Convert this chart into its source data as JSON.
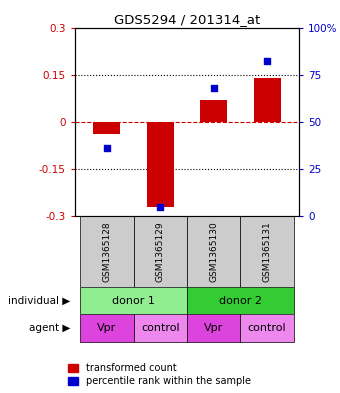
{
  "title": "GDS5294 / 201314_at",
  "samples": [
    "GSM1365128",
    "GSM1365129",
    "GSM1365130",
    "GSM1365131"
  ],
  "red_values": [
    -0.04,
    -0.27,
    0.07,
    0.14
  ],
  "blue_percentiles": [
    36,
    5,
    68,
    82
  ],
  "ylim_left": [
    -0.3,
    0.3
  ],
  "ylim_right": [
    0,
    100
  ],
  "yticks_left": [
    -0.3,
    -0.15,
    0,
    0.15,
    0.3
  ],
  "yticks_right": [
    0,
    25,
    50,
    75,
    100
  ],
  "ytick_labels_left": [
    "-0.3",
    "-0.15",
    "0",
    "0.15",
    "0.3"
  ],
  "ytick_labels_right": [
    "0",
    "25",
    "50",
    "75",
    "100%"
  ],
  "left_axis_color": "#cc0000",
  "right_axis_color": "#0000cc",
  "bar_color": "#cc0000",
  "marker_color": "#0000cc",
  "sample_bg_color": "#cccccc",
  "donor1_color": "#90ee90",
  "donor2_color": "#33cc33",
  "agent_vpr_color": "#dd44dd",
  "agent_control_color": "#ee88ee",
  "donor1_label": "donor 1",
  "donor2_label": "donor 2",
  "agent_labels": [
    "Vpr",
    "control",
    "Vpr",
    "control"
  ],
  "legend_red_label": "transformed count",
  "legend_blue_label": "percentile rank within the sample",
  "bar_width": 0.5
}
